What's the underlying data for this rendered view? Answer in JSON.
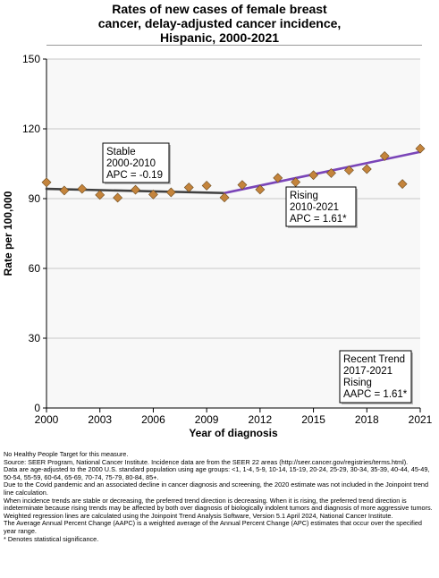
{
  "title_lines": [
    "Rates of new cases of female breast",
    "cancer, delay-adjusted cancer incidence,",
    "Hispanic,  2000-2021"
  ],
  "colors": {
    "observed": "#c4843c",
    "trend_stable": "#404040",
    "trend_rising": "#7a45b8",
    "plot_bg": "#f8f8f8",
    "grid": "#c8c8c8"
  },
  "chart_data": {
    "type": "scatter",
    "xlabel": "Year of diagnosis",
    "ylabel": "Rate per 100,000",
    "xlim": [
      2000,
      2021
    ],
    "ylim": [
      0,
      150
    ],
    "x_ticks": [
      2000,
      2003,
      2006,
      2009,
      2012,
      2015,
      2018,
      2021
    ],
    "y_ticks": [
      0,
      30,
      60,
      90,
      120,
      150
    ],
    "grid": "horizontal",
    "observed": {
      "x": [
        2000,
        2001,
        2002,
        2003,
        2004,
        2005,
        2006,
        2007,
        2008,
        2009,
        2010,
        2011,
        2012,
        2013,
        2014,
        2015,
        2016,
        2017,
        2018,
        2019,
        2020,
        2021
      ],
      "y": [
        97.0,
        93.5,
        94.2,
        91.6,
        90.4,
        93.8,
        91.8,
        92.7,
        94.8,
        95.6,
        90.5,
        95.9,
        93.9,
        98.9,
        97.1,
        100.1,
        101.0,
        102.2,
        102.7,
        108.3,
        96.3,
        111.5
      ]
    },
    "trends": [
      {
        "segment": "2000-2010",
        "x": [
          2000,
          2010
        ],
        "y": [
          94.2,
          92.4
        ]
      },
      {
        "segment": "2010-2021",
        "x": [
          2010,
          2021
        ],
        "y": [
          92.4,
          110.1
        ]
      }
    ],
    "annotations": [
      {
        "lines": [
          "Stable",
          "2000-2010",
          "APC = -0.19"
        ]
      },
      {
        "lines": [
          "Rising",
          "2010-2021",
          "APC =  1.61*"
        ]
      },
      {
        "lines": [
          "Recent Trend",
          "2017-2021",
          "Rising",
          "AAPC =  1.61*"
        ]
      }
    ]
  },
  "footnotes": [
    "No Healthy People Target for this measure.",
    "Source: SEER Program, National Cancer Institute. Incidence data are from the SEER 22 areas (http://seer.cancer.gov/registries/terms.html).",
    "Data are age-adjusted to the 2000 U.S. standard population using age groups: <1, 1-4, 5-9, 10-14, 15-19, 20-24, 25-29, 30-34, 35-39, 40-44, 45-49, 50-54, 55-59, 60-64, 65-69, 70-74, 75-79, 80-84, 85+.",
    "Due to the Covid pandemic and an associated decline in cancer diagnosis and screening, the 2020 estimate was not included in the Joinpoint trend line calculation.",
    "When incidence trends are stable or decreasing, the preferred trend direction is decreasing. When it is rising, the preferred trend direction is indeterminate because rising trends may be affected by both over diagnosis of biologically indolent tumors and diagnosis of more aggressive tumors.",
    "Weighted regression lines are calculated using the Joinpoint Trend Analysis Software, Version 5.1 April 2024, National Cancer Institute.",
    "The Average Annual Percent Change (AAPC) is a weighted average of the Annual Percent Change (APC) estimates that occur over the specified year range.",
    "* Denotes statistical significance."
  ]
}
